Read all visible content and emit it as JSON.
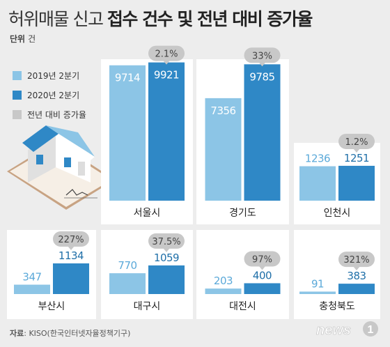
{
  "title": {
    "light": "허위매물 신고",
    "bold": "접수 건수 및 전년 대비 증가율"
  },
  "unit": {
    "label": "단위",
    "value": "건"
  },
  "colors": {
    "y2019": "#8cc5e6",
    "y2020": "#2f88c6",
    "rate": "#c8c8c8",
    "background": "#ededed",
    "panel": "#ffffff"
  },
  "legend": [
    {
      "label": "2019년 2분기",
      "color": "#8cc5e6"
    },
    {
      "label": "2020년 2분기",
      "color": "#2f88c6"
    },
    {
      "label": "전년 대비 증가율",
      "color": "#c8c8c8"
    }
  ],
  "chart_data": {
    "type": "bar",
    "series": [
      {
        "name": "2019년 2분기",
        "values": [
          9714,
          7356,
          1236,
          347,
          770,
          203,
          91
        ]
      },
      {
        "name": "2020년 2분기",
        "values": [
          9921,
          9785,
          1251,
          1134,
          1059,
          400,
          383
        ]
      }
    ],
    "categories": [
      "서울시",
      "경기도",
      "인천시",
      "부산시",
      "대구시",
      "대전시",
      "충청북도"
    ],
    "growth_rates": [
      "2.1%",
      "33%",
      "1.2%",
      "227%",
      "37.5%",
      "97%",
      "321%"
    ]
  },
  "source": {
    "label": "자료",
    "value": "KISO(한국인터넷자율정책기구)"
  },
  "logo_text": "news1"
}
